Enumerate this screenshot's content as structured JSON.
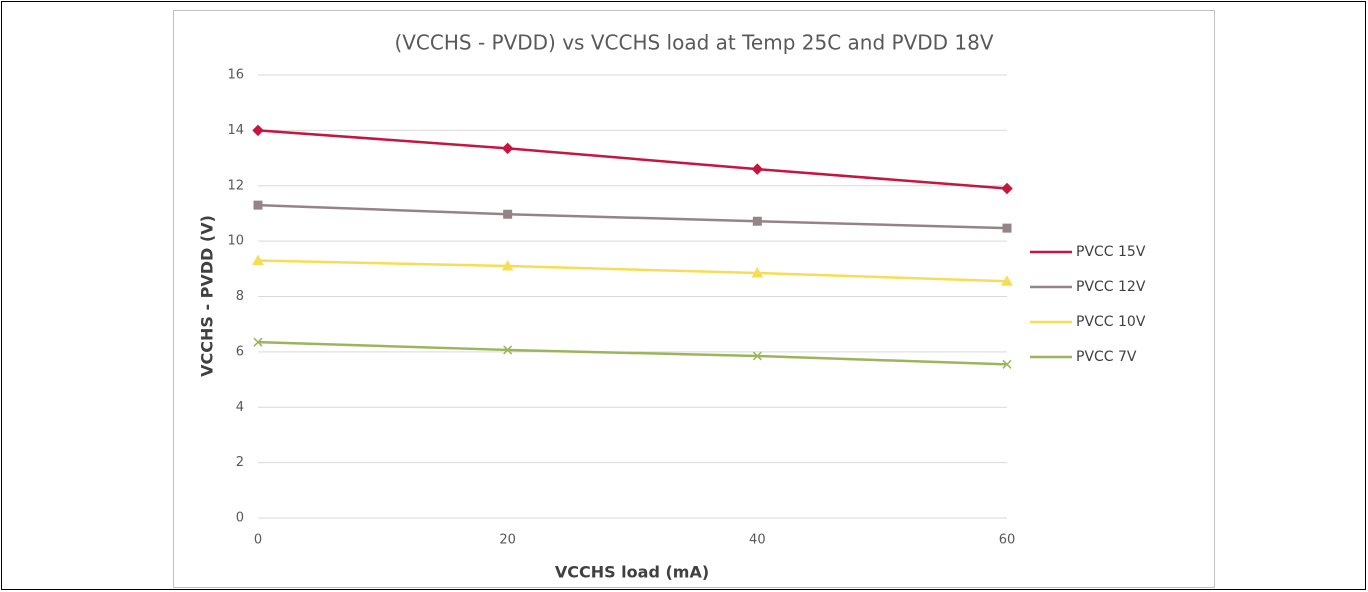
{
  "chart_data": {
    "type": "line",
    "title": "(VCCHS - PVDD) vs VCCHS load at Temp 25C and PVDD 18V",
    "x_label": "VCCHS load (mA)",
    "y_label": "VCCHS - PVDD (V)",
    "x": [
      0,
      20,
      40,
      60
    ],
    "series": [
      {
        "name": "PVCC 15V",
        "color": "#c8143e",
        "marker": "diamond",
        "values": [
          14.0,
          13.35,
          12.6,
          11.9
        ]
      },
      {
        "name": "PVCC 12V",
        "color": "#958487",
        "marker": "square",
        "values": [
          11.3,
          10.97,
          10.72,
          10.47
        ]
      },
      {
        "name": "PVCC 10V",
        "color": "#f7dd55",
        "marker": "triangle",
        "values": [
          9.3,
          9.1,
          8.85,
          8.55
        ]
      },
      {
        "name": "PVCC 7V",
        "color": "#9bb55a",
        "marker": "x",
        "values": [
          6.35,
          6.07,
          5.85,
          5.55
        ]
      }
    ],
    "xlim": [
      0,
      60
    ],
    "xticks": [
      0,
      20,
      40,
      60
    ],
    "ylim": [
      0,
      16
    ],
    "yticks": [
      0,
      2,
      4,
      6,
      8,
      10,
      12,
      14,
      16
    ],
    "grid": true,
    "legend": "right"
  }
}
